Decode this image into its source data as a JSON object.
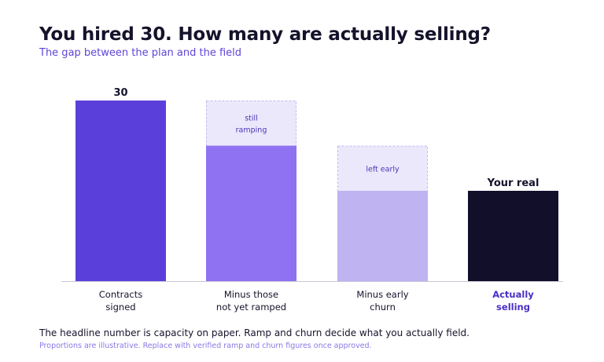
{
  "header": {
    "title": "You hired 30. How many are actually selling?",
    "subtitle": "The gap between the plan and the field"
  },
  "chart_data": {
    "type": "bar",
    "categories": [
      [
        "Contracts",
        "signed"
      ],
      [
        "Minus those",
        "not yet ramped"
      ],
      [
        "Minus early",
        "churn"
      ],
      [
        "Actually",
        "selling"
      ]
    ],
    "values": [
      30,
      22.5,
      15,
      15
    ],
    "ylim": [
      0,
      30
    ],
    "grid": false,
    "value_labels": [
      "30",
      "",
      "",
      "Your real"
    ],
    "gaps": [
      {
        "category_index": 1,
        "from": 22.5,
        "to": 30,
        "label": [
          "still",
          "ramping"
        ]
      },
      {
        "category_index": 2,
        "from": 15,
        "to": 22.5,
        "label": [
          "left early"
        ]
      }
    ],
    "colors": [
      "#5b3fdb",
      "#8f72f2",
      "#bfb3f2",
      "#120f2b"
    ],
    "gap_fill": "#ece8fb",
    "gap_stroke": "#c4b9f0",
    "gap_text_color": "#4a34b8",
    "highlight_category_color": "#4a2fc4",
    "axis_color": "#c9c6d6"
  },
  "footer": {
    "footnote": "The headline number is capacity on paper. Ramp and churn decide what you actually field.",
    "note": "Proportions are illustrative. Replace with verified ramp and churn figures once approved."
  }
}
